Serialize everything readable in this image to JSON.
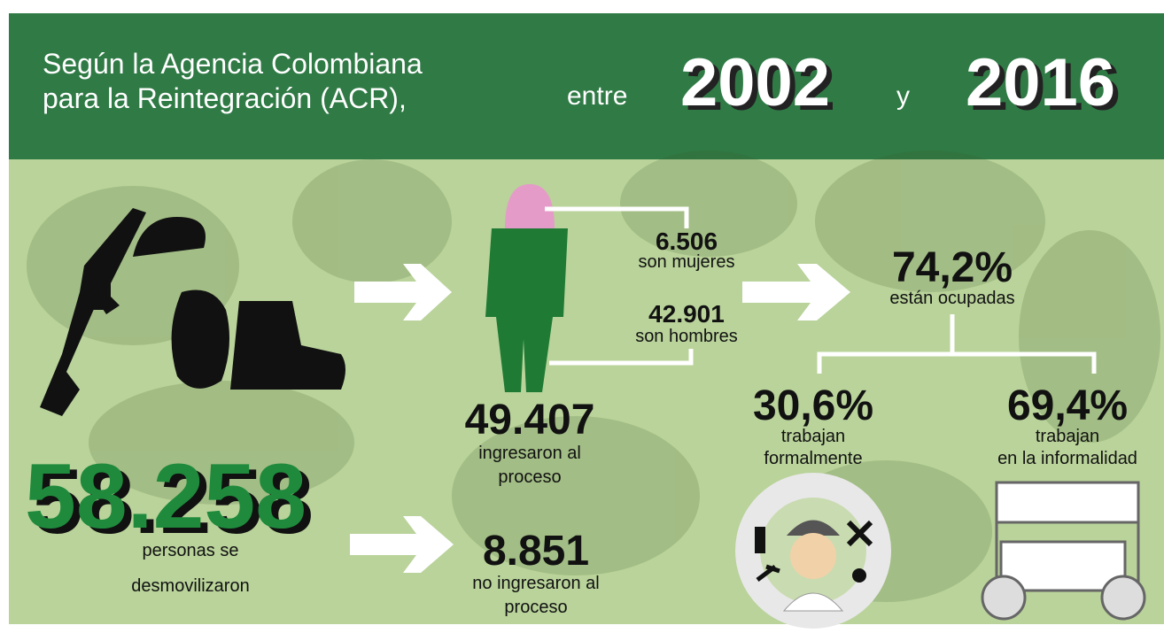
{
  "header": {
    "intro": [
      "Según la Agencia Colombiana",
      "para la Reintegración (ACR),"
    ],
    "between": "entre",
    "start_year": "2002",
    "and": "y",
    "end_year": "2016"
  },
  "demobilized": {
    "number": "58.258",
    "label": [
      "personas se",
      "desmovilizaron"
    ]
  },
  "entered": {
    "number": "49.407",
    "label": [
      "ingresaron al",
      "proceso"
    ]
  },
  "not_entered": {
    "number": "8.851",
    "label": [
      "no ingresaron al",
      "proceso"
    ]
  },
  "women": {
    "number": "6.506",
    "label": "son mujeres"
  },
  "men": {
    "number": "42.901",
    "label": "son hombres"
  },
  "employed": {
    "number": "74,2%",
    "label": "están ocupadas"
  },
  "formal": {
    "number": "30,6%",
    "label": [
      "trabajan",
      "formalmente"
    ]
  },
  "informal": {
    "number": "69,4%",
    "label": [
      "trabajan",
      "en la informalidad"
    ]
  }
}
